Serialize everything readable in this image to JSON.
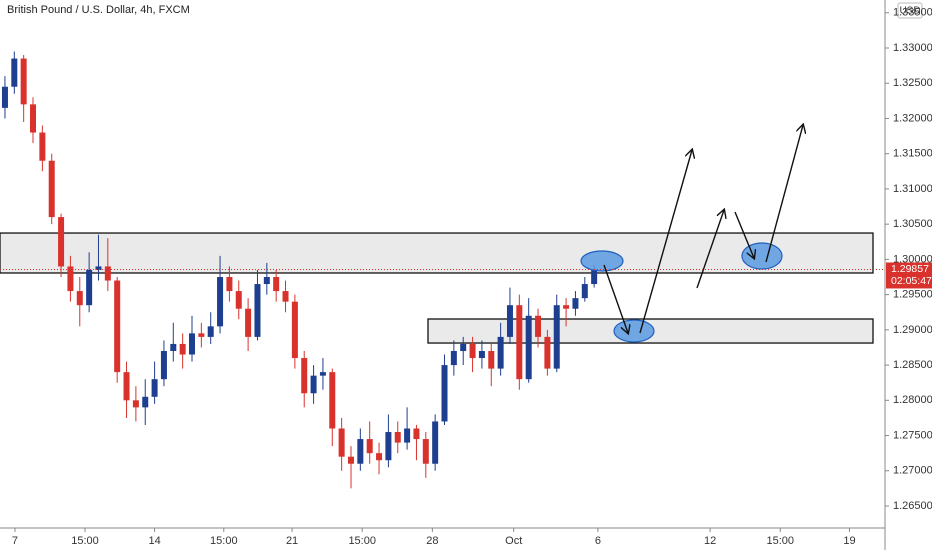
{
  "chart_data": {
    "type": "candlestick",
    "title": "British Pound / U.S. Dollar, 4h, FXCM",
    "currency": "USD",
    "colors": {
      "up": "#1e3f8f",
      "down": "#d9322c"
    },
    "open": [
      1.3215,
      1.3245,
      1.3285,
      1.322,
      1.318,
      1.314,
      1.306,
      1.299,
      1.2955,
      1.2935,
      1.2985,
      1.299,
      1.297,
      1.284,
      1.28,
      1.279,
      1.2805,
      1.283,
      1.287,
      1.288,
      1.2865,
      1.2895,
      1.289,
      1.2905,
      1.2975,
      1.2955,
      1.293,
      1.289,
      1.2965,
      1.2975,
      1.2955,
      1.294,
      1.286,
      1.281,
      1.2835,
      1.284,
      1.276,
      1.272,
      1.271,
      1.2745,
      1.2725,
      1.2715,
      1.2755,
      1.274,
      1.276,
      1.2745,
      1.271,
      1.277,
      1.285,
      1.287,
      1.288,
      1.286,
      1.287,
      1.2845,
      1.289,
      1.2935,
      1.283,
      1.292,
      1.289,
      1.2845,
      1.2935,
      1.293,
      1.2945,
      1.2965
    ],
    "high": [
      1.326,
      1.3295,
      1.329,
      1.323,
      1.319,
      1.315,
      1.3065,
      1.3005,
      1.2975,
      1.301,
      1.3035,
      1.303,
      1.2975,
      1.2855,
      1.282,
      1.283,
      1.2855,
      1.2885,
      1.291,
      1.2895,
      1.292,
      1.291,
      1.2925,
      1.3005,
      1.299,
      1.297,
      1.2945,
      1.2985,
      1.2995,
      1.2985,
      1.297,
      1.295,
      1.287,
      1.285,
      1.286,
      1.2845,
      1.2775,
      1.2735,
      1.276,
      1.277,
      1.274,
      1.278,
      1.277,
      1.279,
      1.2765,
      1.2755,
      1.278,
      1.2865,
      1.2885,
      1.289,
      1.289,
      1.2885,
      1.288,
      1.291,
      1.296,
      1.295,
      1.2945,
      1.293,
      1.29,
      1.295,
      1.2945,
      1.2955,
      1.2975,
      1.2992
    ],
    "low": [
      1.32,
      1.3235,
      1.3195,
      1.3165,
      1.3125,
      1.305,
      1.2975,
      1.294,
      1.2905,
      1.2925,
      1.297,
      1.2955,
      1.2825,
      1.2775,
      1.277,
      1.2765,
      1.2795,
      1.282,
      1.2855,
      1.2845,
      1.2855,
      1.2875,
      1.288,
      1.2895,
      1.294,
      1.2915,
      1.287,
      1.2885,
      1.295,
      1.294,
      1.2925,
      1.2845,
      1.279,
      1.2795,
      1.2815,
      1.2735,
      1.27,
      1.2675,
      1.27,
      1.271,
      1.2695,
      1.2705,
      1.2725,
      1.273,
      1.2715,
      1.269,
      1.27,
      1.2765,
      1.2835,
      1.285,
      1.284,
      1.2845,
      1.282,
      1.2835,
      1.288,
      1.2815,
      1.2825,
      1.2875,
      1.2835,
      1.284,
      1.2905,
      1.292,
      1.294,
      1.296
    ],
    "close": [
      1.3245,
      1.3285,
      1.322,
      1.318,
      1.314,
      1.306,
      1.299,
      1.2955,
      1.2935,
      1.2985,
      1.299,
      1.297,
      1.284,
      1.28,
      1.279,
      1.2805,
      1.283,
      1.287,
      1.288,
      1.2865,
      1.2895,
      1.289,
      1.2905,
      1.2975,
      1.2955,
      1.293,
      1.289,
      1.2965,
      1.2975,
      1.2955,
      1.294,
      1.286,
      1.281,
      1.2835,
      1.284,
      1.276,
      1.272,
      1.271,
      1.2745,
      1.2725,
      1.2715,
      1.2755,
      1.274,
      1.276,
      1.2745,
      1.271,
      1.277,
      1.285,
      1.287,
      1.288,
      1.286,
      1.287,
      1.2845,
      1.289,
      1.2935,
      1.283,
      1.292,
      1.289,
      1.2845,
      1.2935,
      1.293,
      1.2945,
      1.2965,
      1.2986
    ],
    "zones": [
      {
        "top": 1.30374,
        "bottom": 1.29807
      },
      {
        "top": 1.29154,
        "bottom": 1.28813
      }
    ],
    "last_price": {
      "value": 1.29857,
      "label": "1.29857"
    },
    "countdown": "02:05:47",
    "xlim": [
      -0.53,
      94.1
    ],
    "xticks": [
      {
        "value": 1.07,
        "label": "7"
      },
      {
        "value": 8.56,
        "label": "15:00"
      },
      {
        "value": 16.0,
        "label": "14"
      },
      {
        "value": 23.4,
        "label": "15:00"
      },
      {
        "value": 30.7,
        "label": "21"
      },
      {
        "value": 38.2,
        "label": "15:00"
      },
      {
        "value": 45.7,
        "label": "28"
      },
      {
        "value": 54.4,
        "label": "Oct"
      },
      {
        "value": 63.4,
        "label": "6"
      },
      {
        "value": 75.4,
        "label": "12"
      },
      {
        "value": 82.9,
        "label": "15:00"
      },
      {
        "value": 90.3,
        "label": "19"
      }
    ],
    "ylim": [
      1.26188,
      1.33681
    ],
    "yticks": [
      {
        "value": 1.265,
        "label": "1.26500"
      },
      {
        "value": 1.27,
        "label": "1.27000"
      },
      {
        "value": 1.275,
        "label": "1.27500"
      },
      {
        "value": 1.28,
        "label": "1.28000"
      },
      {
        "value": 1.285,
        "label": "1.28500"
      },
      {
        "value": 1.29,
        "label": "1.29000"
      },
      {
        "value": 1.295,
        "label": "1.29500"
      },
      {
        "value": 1.3,
        "label": "1.30000"
      },
      {
        "value": 1.305,
        "label": "1.30500"
      },
      {
        "value": 1.31,
        "label": "1.31000"
      },
      {
        "value": 1.315,
        "label": "1.31500"
      },
      {
        "value": 1.32,
        "label": "1.32000"
      },
      {
        "value": 1.325,
        "label": "1.32500"
      },
      {
        "value": 1.33,
        "label": "1.33000"
      },
      {
        "value": 1.335,
        "label": "1.33500"
      }
    ]
  }
}
